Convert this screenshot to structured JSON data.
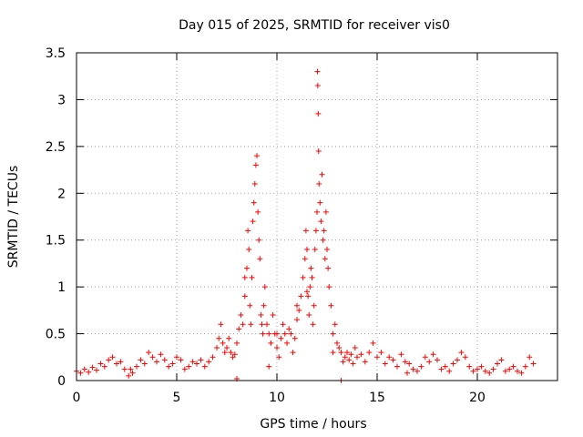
{
  "chart_data": {
    "type": "scatter",
    "title": "Day 015 of 2025, SRMTID for receiver vis0",
    "xlabel": "GPS time / hours",
    "ylabel": "SRMTID / TECUs",
    "xlim": [
      0,
      24
    ],
    "ylim": [
      0,
      3.5
    ],
    "xticks": [
      0,
      5,
      10,
      15,
      20
    ],
    "xtick_labels": [
      "0",
      "5",
      "10",
      "15",
      "20"
    ],
    "yticks": [
      0,
      0.5,
      1,
      1.5,
      2,
      2.5,
      3,
      3.5
    ],
    "ytick_labels": [
      "0",
      "0.5",
      "1",
      "1.5",
      "2",
      "2.5",
      "3",
      "3.5"
    ],
    "grid": true,
    "marker": "+",
    "color": "#ff0000",
    "series": [
      {
        "name": "vis0",
        "x": [
          0.0,
          0.2,
          0.4,
          0.6,
          0.8,
          1.0,
          1.2,
          1.4,
          1.6,
          1.8,
          2.0,
          2.2,
          2.4,
          2.6,
          2.8,
          3.0,
          3.2,
          3.4,
          3.6,
          3.8,
          4.0,
          4.2,
          4.4,
          4.6,
          4.8,
          5.0,
          5.2,
          5.4,
          5.6,
          5.8,
          6.0,
          6.2,
          6.4,
          6.6,
          6.8,
          7.0,
          7.1,
          7.2,
          7.3,
          7.4,
          7.5,
          7.6,
          7.7,
          7.8,
          7.9,
          8.0,
          8.1,
          8.2,
          8.3,
          8.4,
          8.5,
          8.55,
          8.6,
          8.65,
          8.7,
          8.75,
          8.8,
          8.85,
          8.9,
          8.95,
          9.0,
          9.05,
          9.1,
          9.15,
          9.2,
          9.25,
          9.3,
          9.35,
          9.4,
          9.5,
          9.6,
          9.7,
          9.8,
          9.9,
          10.0,
          10.1,
          10.2,
          10.3,
          10.4,
          10.5,
          10.6,
          10.7,
          10.8,
          10.9,
          11.0,
          11.1,
          11.2,
          11.3,
          11.4,
          11.45,
          11.5,
          11.55,
          11.6,
          11.65,
          11.7,
          11.75,
          11.8,
          11.85,
          11.9,
          11.95,
          12.0,
          12.02,
          12.04,
          12.06,
          12.08,
          12.1,
          12.15,
          12.2,
          12.25,
          12.3,
          12.35,
          12.4,
          12.45,
          12.5,
          12.55,
          12.6,
          12.7,
          12.8,
          12.9,
          13.0,
          13.1,
          13.2,
          13.3,
          13.4,
          13.5,
          13.6,
          13.7,
          13.8,
          13.9,
          14.0,
          14.2,
          14.4,
          14.6,
          14.8,
          15.0,
          15.2,
          15.4,
          15.6,
          15.8,
          16.0,
          16.2,
          16.4,
          16.6,
          16.8,
          17.0,
          17.2,
          17.4,
          17.6,
          17.8,
          18.0,
          18.2,
          18.4,
          18.6,
          18.8,
          19.0,
          19.2,
          19.4,
          19.6,
          19.8,
          20.0,
          20.2,
          20.4,
          20.6,
          20.8,
          21.0,
          21.2,
          21.4,
          21.6,
          21.8,
          22.0,
          22.2,
          22.4,
          22.6,
          22.8,
          2.7,
          16.5,
          8.0,
          13.2,
          11.0,
          10.0,
          9.6,
          12.8,
          8.4,
          11.5
        ],
        "y": [
          0.1,
          0.08,
          0.12,
          0.09,
          0.14,
          0.11,
          0.18,
          0.15,
          0.22,
          0.25,
          0.18,
          0.2,
          0.12,
          0.05,
          0.08,
          0.15,
          0.22,
          0.18,
          0.3,
          0.25,
          0.2,
          0.28,
          0.22,
          0.15,
          0.18,
          0.25,
          0.22,
          0.12,
          0.15,
          0.2,
          0.18,
          0.22,
          0.15,
          0.2,
          0.25,
          0.35,
          0.45,
          0.6,
          0.4,
          0.3,
          0.35,
          0.45,
          0.3,
          0.25,
          0.28,
          0.4,
          0.55,
          0.7,
          0.6,
          0.9,
          1.2,
          1.6,
          1.4,
          0.8,
          0.6,
          1.1,
          1.7,
          1.9,
          2.1,
          2.3,
          2.4,
          1.8,
          1.5,
          1.3,
          0.7,
          0.6,
          0.5,
          0.8,
          1.0,
          0.6,
          0.5,
          0.4,
          0.7,
          0.5,
          0.35,
          0.25,
          0.45,
          0.6,
          0.5,
          0.4,
          0.55,
          0.5,
          0.3,
          0.45,
          0.65,
          0.75,
          0.9,
          1.1,
          1.3,
          1.6,
          1.4,
          0.9,
          0.7,
          1.0,
          1.2,
          1.1,
          0.6,
          0.8,
          1.4,
          1.6,
          1.8,
          3.3,
          3.15,
          2.85,
          2.45,
          2.1,
          1.9,
          1.7,
          2.2,
          1.5,
          1.6,
          1.3,
          1.8,
          1.4,
          1.2,
          1.0,
          0.8,
          0.5,
          0.6,
          0.4,
          0.35,
          0.3,
          0.2,
          0.25,
          0.3,
          0.22,
          0.28,
          0.18,
          0.35,
          0.25,
          0.28,
          0.2,
          0.3,
          0.4,
          0.25,
          0.3,
          0.18,
          0.25,
          0.22,
          0.15,
          0.28,
          0.2,
          0.18,
          0.12,
          0.1,
          0.15,
          0.25,
          0.2,
          0.28,
          0.22,
          0.12,
          0.15,
          0.1,
          0.18,
          0.22,
          0.3,
          0.25,
          0.15,
          0.1,
          0.12,
          0.15,
          0.1,
          0.08,
          0.12,
          0.18,
          0.22,
          0.1,
          0.12,
          0.15,
          0.1,
          0.08,
          0.15,
          0.25,
          0.18,
          0.12,
          0.08,
          0.02,
          0.0,
          0.8,
          0.5,
          0.15,
          0.3,
          1.1,
          0.95
        ]
      }
    ]
  }
}
